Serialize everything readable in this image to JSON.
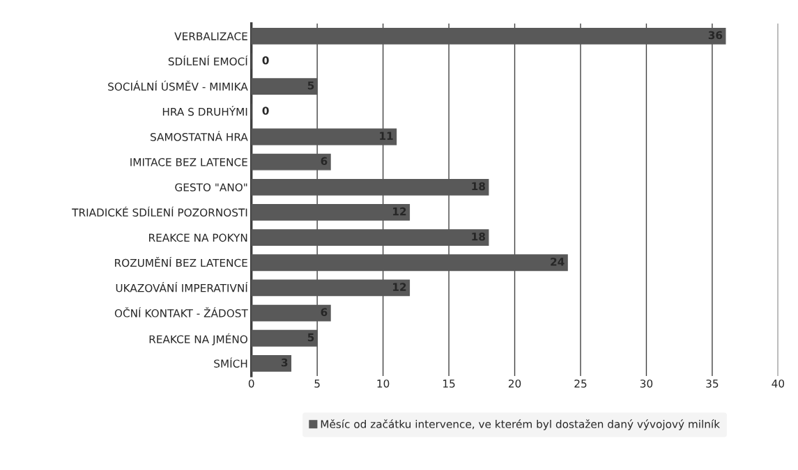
{
  "chart_data": {
    "type": "bar",
    "orientation": "horizontal",
    "categories": [
      "VERBALIZACE",
      "SDÍLENÍ EMOCÍ",
      "SOCIÁLNÍ ÚSMĚV - MIMIKA",
      "HRA S DRUHÝMI",
      "SAMOSTATNÁ HRA",
      "IMITACE BEZ LATENCE",
      "GESTO \"ANO\"",
      "TRIADICKÉ SDÍLENÍ POZORNOSTI",
      "REAKCE NA POKYN",
      "ROZUMĚNÍ BEZ LATENCE",
      "UKAZOVÁNÍ IMPERATIVNÍ",
      "OČNÍ KONTAKT - ŽÁDOST",
      "REAKCE NA JMÉNO",
      "SMÍCH"
    ],
    "series": [
      {
        "name": "Měsíc od začátku intervence, ve kterém byl dostažen daný vývojový milník",
        "color": "#595959",
        "values": [
          36,
          0,
          5,
          0,
          11,
          6,
          18,
          12,
          18,
          24,
          12,
          6,
          5,
          3
        ]
      }
    ],
    "xlim": [
      0,
      40
    ],
    "xticks": [
      0,
      5,
      10,
      15,
      20,
      25,
      30,
      35,
      40
    ],
    "grid": "x",
    "legend": "bottom",
    "data_labels": true
  }
}
